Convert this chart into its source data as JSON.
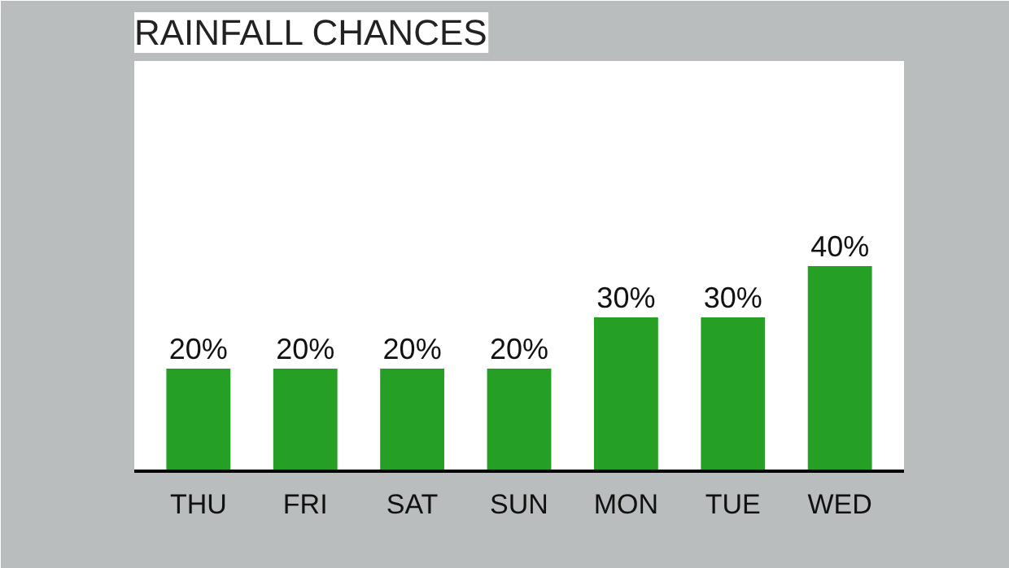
{
  "chart_data": {
    "type": "bar",
    "title": "RAINFALL CHANCES",
    "categories": [
      "THU",
      "FRI",
      "SAT",
      "SUN",
      "MON",
      "TUE",
      "WED"
    ],
    "values": [
      20,
      20,
      20,
      20,
      30,
      30,
      40
    ],
    "value_labels": [
      "20%",
      "20%",
      "20%",
      "20%",
      "30%",
      "30%",
      "40%"
    ],
    "color": "#25a025"
  }
}
